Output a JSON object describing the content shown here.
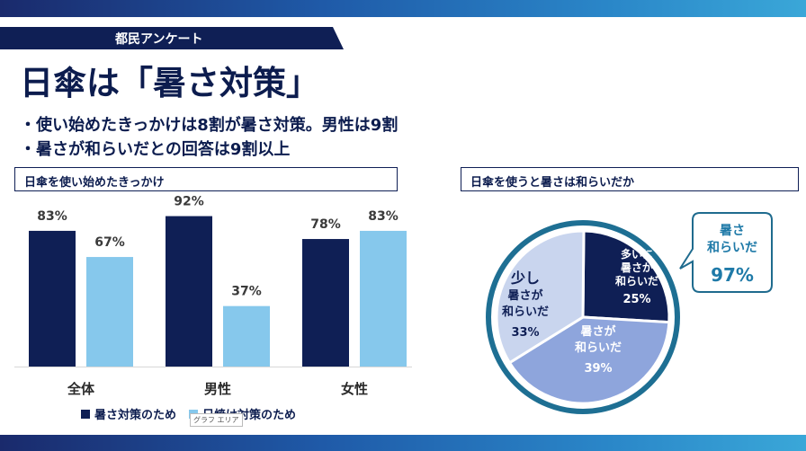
{
  "header": {
    "tag": "都民アンケート",
    "title": "日傘は「暑さ対策」",
    "bullets": [
      "・使い始めたきっかけは8割が暑さ対策。男性は9割",
      "・暑さが和らいだとの回答は9割以上"
    ]
  },
  "colors": {
    "navy": "#0f1f55",
    "light_blue": "#86c8ec",
    "pie_light": "#c9d5ee",
    "pie_mid": "#8ea5dc",
    "ring": "#1e6f93"
  },
  "tooltip": "グラフ エリア",
  "chart_data": [
    {
      "type": "bar",
      "title": "日傘を使い始めたきっかけ",
      "categories": [
        "全体",
        "男性",
        "女性"
      ],
      "series": [
        {
          "name": "暑さ対策のため",
          "values": [
            83,
            92,
            78
          ],
          "labels": [
            "83%",
            "92%",
            "78%"
          ]
        },
        {
          "name": "日焼け対策のため",
          "values": [
            67,
            37,
            83
          ],
          "labels": [
            "67%",
            "37%",
            "83%"
          ]
        }
      ],
      "ylim": [
        0,
        100
      ],
      "legend": "bottom"
    },
    {
      "type": "pie",
      "title": "日傘を使うと暑さは和らいだか",
      "slices": [
        {
          "label": "多いに暑さが和らいだ",
          "lines": [
            "多いに",
            "暑さが",
            "和らいだ"
          ],
          "value": 25,
          "value_label": "25%"
        },
        {
          "label": "暑さが和らいだ",
          "lines": [
            "暑さが",
            "和らいだ"
          ],
          "value": 39,
          "value_label": "39%"
        },
        {
          "label": "少し暑さが和らいだ",
          "lines": [
            "少し",
            "暑さが",
            "和らいだ"
          ],
          "value": 33,
          "value_label": "33%"
        }
      ],
      "callout": {
        "lines": [
          "暑さ",
          "和らいだ"
        ],
        "value": "97%"
      }
    }
  ]
}
